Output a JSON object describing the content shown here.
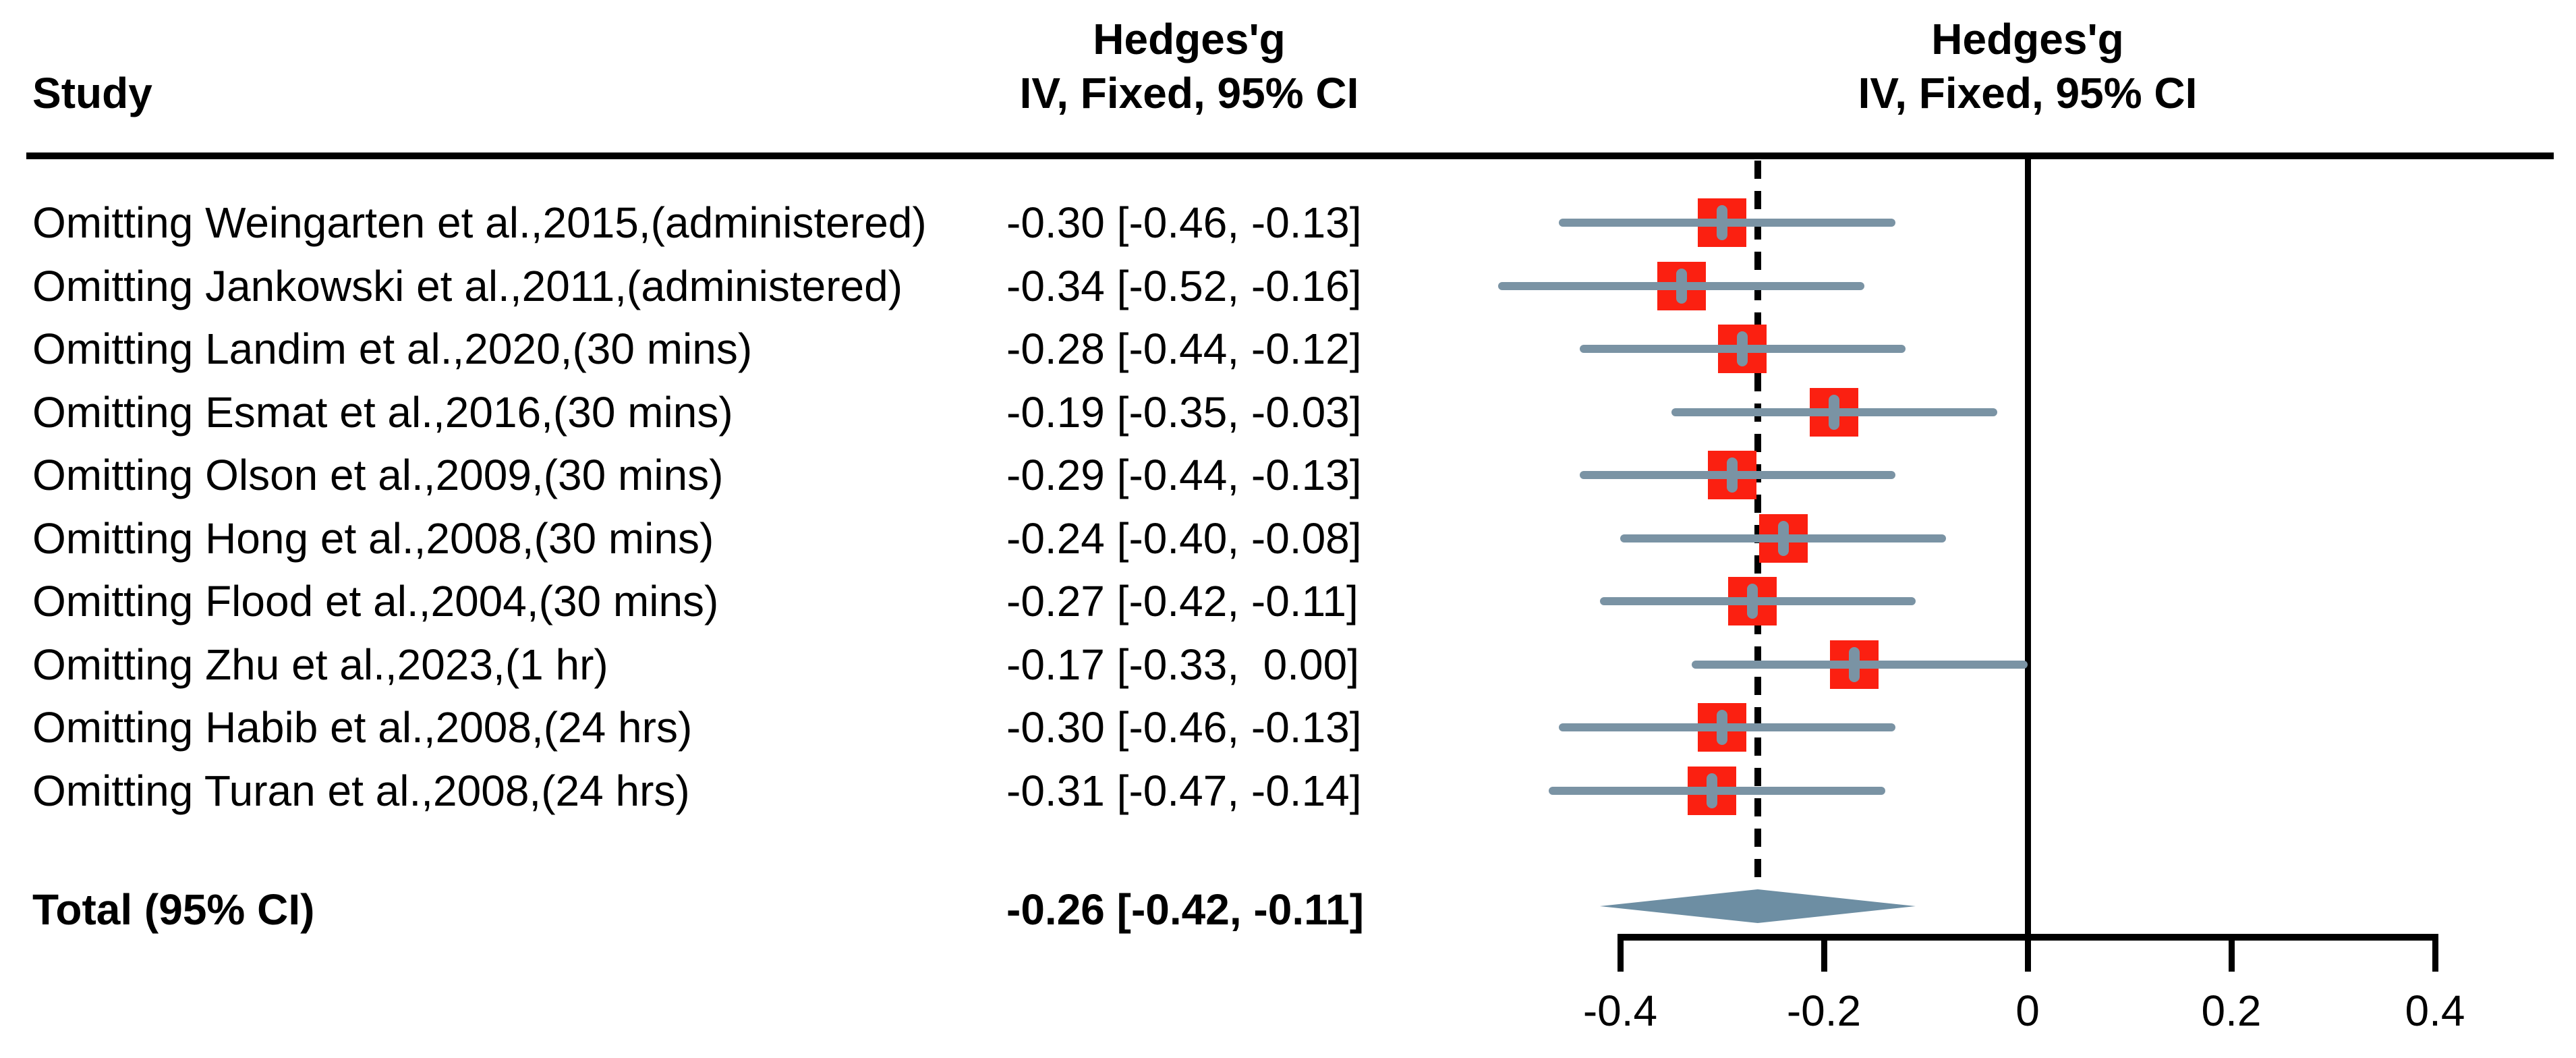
{
  "header": {
    "study_col": "Study",
    "effect_col_line1": "Hedges'g",
    "effect_col_line2": "IV, Fixed, 95% CI",
    "plot_col_line1": "Hedges'g",
    "plot_col_line2": "IV, Fixed, 95% CI"
  },
  "chart_data": {
    "type": "forest",
    "effect_measure": "Hedges'g",
    "model_label": "IV, Fixed, 95% CI",
    "studies": [
      {
        "label": "Omitting Weingarten et al.,2015,(administered)",
        "ci_text": "-0.30 [-0.46, -0.13]",
        "est": -0.3,
        "lo": -0.46,
        "hi": -0.13
      },
      {
        "label": "Omitting Jankowski et al.,2011,(administered)",
        "ci_text": "-0.34 [-0.52, -0.16]",
        "est": -0.34,
        "lo": -0.52,
        "hi": -0.16
      },
      {
        "label": "Omitting Landim et al.,2020,(30 mins)",
        "ci_text": "-0.28 [-0.44, -0.12]",
        "est": -0.28,
        "lo": -0.44,
        "hi": -0.12
      },
      {
        "label": "Omitting Esmat et al.,2016,(30 mins)",
        "ci_text": "-0.19 [-0.35, -0.03]",
        "est": -0.19,
        "lo": -0.35,
        "hi": -0.03
      },
      {
        "label": "Omitting Olson et al.,2009,(30 mins)",
        "ci_text": "-0.29 [-0.44, -0.13]",
        "est": -0.29,
        "lo": -0.44,
        "hi": -0.13
      },
      {
        "label": "Omitting Hong et al.,2008,(30 mins)",
        "ci_text": "-0.24 [-0.40, -0.08]",
        "est": -0.24,
        "lo": -0.4,
        "hi": -0.08
      },
      {
        "label": "Omitting Flood et al.,2004,(30 mins)",
        "ci_text": "-0.27 [-0.42, -0.11]",
        "est": -0.27,
        "lo": -0.42,
        "hi": -0.11
      },
      {
        "label": "Omitting Zhu et al.,2023,(1 hr)",
        "ci_text": "-0.17 [-0.33,  0.00]",
        "est": -0.17,
        "lo": -0.33,
        "hi": 0.0
      },
      {
        "label": "Omitting Habib et al.,2008,(24 hrs)",
        "ci_text": "-0.30 [-0.46, -0.13]",
        "est": -0.3,
        "lo": -0.46,
        "hi": -0.13
      },
      {
        "label": "Omitting Turan et al.,2008,(24 hrs)",
        "ci_text": "-0.31 [-0.47, -0.14]",
        "est": -0.31,
        "lo": -0.47,
        "hi": -0.14
      }
    ],
    "total": {
      "label": "Total (95% CI)",
      "ci_text": "-0.26 [-0.42, -0.11]",
      "est": -0.26,
      "lo": -0.42,
      "hi": -0.11
    },
    "axis": {
      "xlim": [
        -0.4,
        0.4
      ],
      "ticks": [
        -0.4,
        -0.2,
        0,
        0.2,
        0.4
      ],
      "tick_labels": [
        "-0.4",
        "-0.2",
        "0",
        "0.2",
        "0.4"
      ],
      "zero_reference": 0,
      "grid": false,
      "legend": "none"
    }
  },
  "colors": {
    "square": "#fb2011",
    "whisker": "#7a93a4",
    "marker_cross": "#7a93a4",
    "diamond": "#6d8ea3",
    "lines": "#000000",
    "background": "#ffffff",
    "text": "#000000"
  }
}
